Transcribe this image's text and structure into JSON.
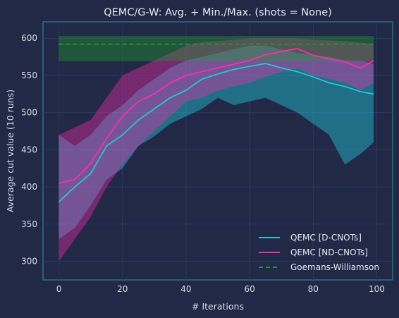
{
  "chart_data": {
    "type": "line",
    "title": "QEMC/G-W: Avg. + Min./Max. (shots = None)",
    "xlabel": "# Iterations",
    "ylabel": "Average cut value (10 runs)",
    "xlim": [
      -5,
      105
    ],
    "ylim": [
      275,
      622
    ],
    "xticks": [
      0,
      20,
      40,
      60,
      80,
      100
    ],
    "yticks": [
      300,
      350,
      400,
      450,
      500,
      550,
      600
    ],
    "grid": true,
    "legend_position": "lower-right",
    "series": [
      {
        "name": "QEMC [D-CNOTs]",
        "color": "#22c6d4",
        "x": [
          0,
          5,
          10,
          15,
          20,
          25,
          30,
          35,
          40,
          45,
          50,
          55,
          60,
          65,
          70,
          75,
          80,
          85,
          90,
          95,
          99
        ],
        "values": [
          380,
          400,
          418,
          455,
          470,
          490,
          505,
          520,
          530,
          545,
          552,
          558,
          562,
          566,
          560,
          555,
          548,
          540,
          535,
          528,
          525
        ],
        "min": [
          330,
          345,
          375,
          410,
          425,
          455,
          468,
          485,
          495,
          505,
          520,
          510,
          515,
          520,
          510,
          500,
          485,
          470,
          430,
          445,
          460
        ],
        "max": [
          470,
          455,
          470,
          495,
          510,
          530,
          545,
          560,
          570,
          575,
          580,
          585,
          590,
          590,
          585,
          580,
          578,
          575,
          570,
          570,
          565
        ]
      },
      {
        "name": "QEMC [ND-CNOTs]",
        "color": "#ff2bb0",
        "x": [
          0,
          5,
          10,
          15,
          20,
          25,
          30,
          35,
          40,
          45,
          50,
          55,
          60,
          65,
          70,
          75,
          80,
          85,
          90,
          95,
          99
        ],
        "values": [
          405,
          410,
          432,
          465,
          495,
          515,
          525,
          540,
          550,
          555,
          560,
          565,
          570,
          578,
          582,
          586,
          577,
          572,
          568,
          560,
          570
        ],
        "min": [
          300,
          330,
          360,
          400,
          430,
          455,
          475,
          495,
          515,
          520,
          530,
          535,
          540,
          548,
          555,
          560,
          550,
          545,
          540,
          530,
          540
        ],
        "max": [
          470,
          480,
          490,
          520,
          550,
          560,
          570,
          580,
          590,
          595,
          596,
          598,
          600,
          600,
          600,
          600,
          598,
          597,
          596,
          594,
          592
        ]
      },
      {
        "name": "Goemans-Williamson",
        "color": "#1e9b2e",
        "style": "dashed",
        "x": [
          0,
          99
        ],
        "values": [
          592,
          592
        ],
        "min": [
          569,
          569
        ],
        "max": [
          603,
          603
        ]
      }
    ]
  }
}
